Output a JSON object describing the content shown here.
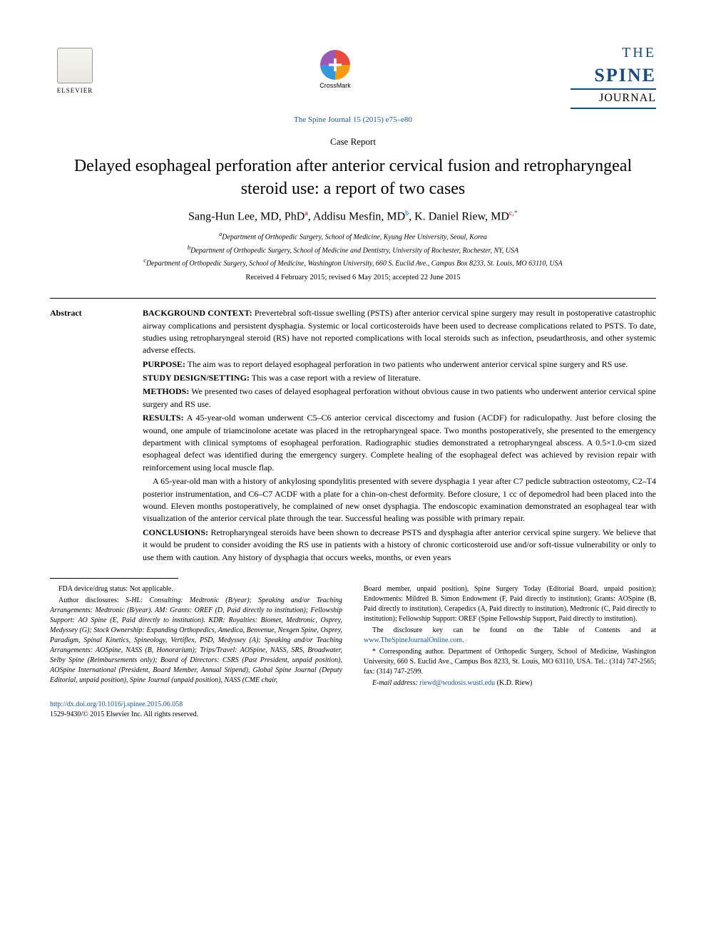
{
  "header": {
    "publisher": "ELSEVIER",
    "crossmark": "CrossMark",
    "journal_the": "THE",
    "journal_spine": "SPINE",
    "journal_journal": "JOURNAL",
    "journal_ref": "The Spine Journal 15 (2015) e75–e80"
  },
  "article": {
    "type": "Case Report",
    "title": "Delayed esophageal perforation after anterior cervical fusion and retropharyngeal steroid use: a report of two cases",
    "authors_html": "Sang-Hun Lee, MD, PhD",
    "author1": "Sang-Hun Lee, MD, PhD",
    "author2": "Addisu Mesfin, MD",
    "author3": "K. Daniel Riew, MD",
    "aff_a": "Department of Orthopedic Surgery, School of Medicine, Kyung Hee University, Seoul, Korea",
    "aff_b": "Department of Orthopedic Surgery, School of Medicine and Dentistry, University of Rochester, Rochester, NY, USA",
    "aff_c": "Department of Orthopedic Surgery, School of Medicine, Washington University, 660 S. Euclid Ave., Campus Box 8233, St. Louis, MO 63110, USA",
    "dates": "Received 4 February 2015; revised 6 May 2015; accepted 22 June 2015"
  },
  "abstract": {
    "label": "Abstract",
    "background_label": "BACKGROUND CONTEXT:",
    "background": "Prevertebral soft-tissue swelling (PSTS) after anterior cervical spine surgery may result in postoperative catastrophic airway complications and persistent dysphagia. Systemic or local corticosteroids have been used to decrease complications related to PSTS. To date, studies using retropharyngeal steroid (RS) have not reported complications with local steroids such as infection, pseudarthrosis, and other systemic adverse effects.",
    "purpose_label": "PURPOSE:",
    "purpose": "The aim was to report delayed esophageal perforation in two patients who underwent anterior cervical spine surgery and RS use.",
    "design_label": "STUDY DESIGN/SETTING:",
    "design": "This was a case report with a review of literature.",
    "methods_label": "METHODS:",
    "methods": "We presented two cases of delayed esophageal perforation without obvious cause in two patients who underwent anterior cervical spine surgery and RS use.",
    "results_label": "RESULTS:",
    "results1": "A 45-year-old woman underwent C5–C6 anterior cervical discectomy and fusion (ACDF) for radiculopathy. Just before closing the wound, one ampule of triamcinolone acetate was placed in the retropharyngeal space. Two months postoperatively, she presented to the emergency department with clinical symptoms of esophageal perforation. Radiographic studies demonstrated a retropharyngeal abscess. A 0.5×1.0-cm sized esophageal defect was identified during the emergency surgery. Complete healing of the esophageal defect was achieved by revision repair with reinforcement using local muscle flap.",
    "results2": "A 65-year-old man with a history of ankylosing spondylitis presented with severe dysphagia 1 year after C7 pedicle subtraction osteotomy, C2–T4 posterior instrumentation, and C6–C7 ACDF with a plate for a chin-on-chest deformity. Before closure, 1 cc of depomedrol had been placed into the wound. Eleven months postoperatively, he complained of new onset dysphagia. The endoscopic examination demonstrated an esophageal tear with visualization of the anterior cervical plate through the tear. Successful healing was possible with primary repair.",
    "conclusions_label": "CONCLUSIONS:",
    "conclusions": "Retropharyngeal steroids have been shown to decrease PSTS and dysphagia after anterior cervical spine surgery. We believe that it would be prudent to consider avoiding the RS use in patients with a history of chronic corticosteroid use and/or soft-tissue vulnerability or only to use them with caution. Any history of dysphagia that occurs weeks, months, or even years"
  },
  "footnotes": {
    "fda": "FDA device/drug status: Not applicable.",
    "disclosures_label": "Author disclosures:",
    "disclosures_left": "S-HL: Consulting: Medtronic (B/year); Speaking and/or Teaching Arrangements: Medtronic (B/year). AM: Grants: OREF (D, Paid directly to institution); Fellowship Support: AO Spine (E, Paid directly to institution). KDR: Royalties: Biomet, Medtronic, Osprey, Medyssey (G); Stock Ownership: Expanding Orthopedics, Amedica, Benvenue, Nexgen Spine, Osprey, Paradigm, Spinal Kinetics, Spineology, Vertiflex, PSD, Medyssey (A); Speaking and/or Teaching Arrangements: AOSpine, NASS (B, Honorarium); Trips/Travel: AOSpine, NASS, SRS, Broadwater, Selby Spine (Reimbursements only); Board of Directors: CSRS (Past President, unpaid position), AOSpine International (President, Board Member, Annual Stipend), Global Spine Journal (Deputy Editorial, unpaid position), Spine Journal (unpaid position), NASS (CME chair,",
    "disclosures_right": "Board member, unpaid position), Spine Surgery Today (Editorial Board, unpaid position); Endowments: Mildred B. Simon Endowment (F, Paid directly to institution); Grants: AOSpine (B, Paid directly to institution), Cerapedics (A, Paid directly to institution), Medtronic (C, Paid directly to institution); Fellowship Support: OREF (Spine Fellowship Support, Paid directly to institution).",
    "disclosure_key": "The disclosure key can be found on the Table of Contents and at",
    "disclosure_link": "www.TheSpineJournalOnline.com",
    "corresponding": "* Corresponding author. Department of Orthopedic Surgery, School of Medicine, Washington University, 660 S. Euclid Ave., Campus Box 8233, St. Louis, MO 63110, USA. Tel.: (314) 747-2565; fax: (314) 747-2599.",
    "email_label": "E-mail address:",
    "email": "riewd@wudosis.wustl.edu",
    "email_who": "(K.D. Riew)"
  },
  "bottom": {
    "doi": "http://dx.doi.org/10.1016/j.spinee.2015.06.058",
    "copyright": "1529-9430/© 2015 Elsevier Inc. All rights reserved."
  },
  "colors": {
    "link": "#1a5490",
    "sup_a": "#cc0000",
    "sup_b": "#0066cc",
    "journal_blue": "#1a4a7a"
  }
}
